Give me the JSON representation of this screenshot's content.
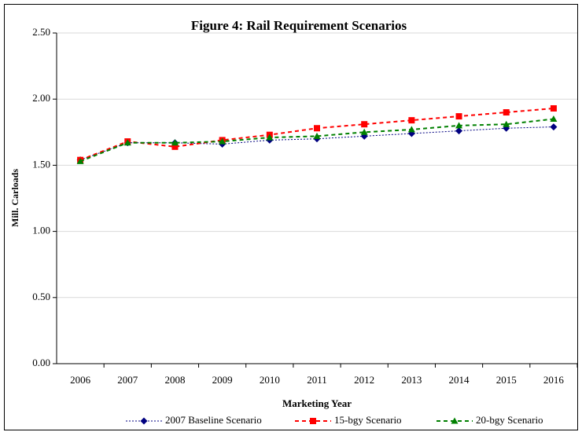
{
  "chart_data": {
    "type": "line",
    "title": "Figure 4:  Rail Requirement Scenarios",
    "x_label": "Marketing Year",
    "y_label": "Mill. Carloads",
    "categories": [
      "2006",
      "2007",
      "2008",
      "2009",
      "2010",
      "2011",
      "2012",
      "2013",
      "2014",
      "2015",
      "2016"
    ],
    "series": [
      {
        "name": "2007 Baseline Scenario",
        "color": "#000080",
        "marker": "diamond",
        "values": [
          1.54,
          1.67,
          1.67,
          1.66,
          1.69,
          1.7,
          1.72,
          1.74,
          1.76,
          1.78,
          1.79
        ]
      },
      {
        "name": "15-bgy Scenario",
        "color": "#ff0000",
        "marker": "square",
        "values": [
          1.54,
          1.68,
          1.64,
          1.69,
          1.73,
          1.78,
          1.81,
          1.84,
          1.87,
          1.9,
          1.93
        ]
      },
      {
        "name": "20-bgy Scenario",
        "color": "#008000",
        "marker": "triangle",
        "values": [
          1.53,
          1.67,
          1.67,
          1.68,
          1.71,
          1.72,
          1.75,
          1.77,
          1.8,
          1.81,
          1.85
        ]
      }
    ],
    "ylim": [
      0,
      2.5
    ],
    "yticks": [
      {
        "value": 0,
        "label": "0.00"
      },
      {
        "value": 0.5,
        "label": "0.50"
      },
      {
        "value": 1,
        "label": "1.00"
      },
      {
        "value": 1.5,
        "label": "1.50"
      },
      {
        "value": 2,
        "label": "2.00"
      },
      {
        "value": 2.5,
        "label": "2.50"
      }
    ],
    "grid": true,
    "legend": "bottom"
  }
}
